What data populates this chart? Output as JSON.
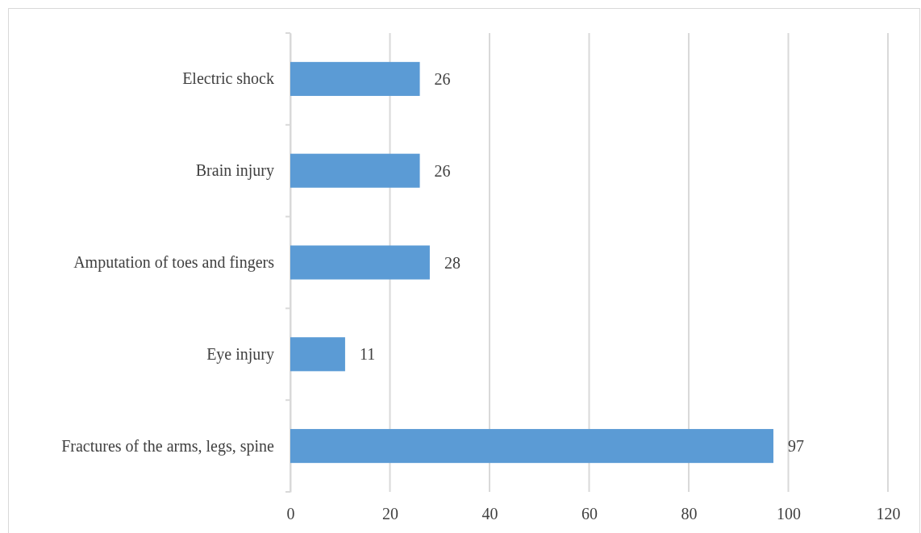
{
  "chart_data": {
    "type": "bar",
    "orientation": "horizontal",
    "categories": [
      "Electric shock",
      "Brain injury",
      "Amputation of toes and fingers",
      "Eye injury",
      "Fractures of the arms, legs, spine"
    ],
    "values": [
      26,
      26,
      28,
      11,
      97
    ],
    "color": "#5b9bd5",
    "xlim": [
      0,
      120
    ],
    "xticks": [
      0,
      20,
      40,
      60,
      80,
      100,
      120
    ],
    "grid": "x",
    "data_labels": true
  }
}
